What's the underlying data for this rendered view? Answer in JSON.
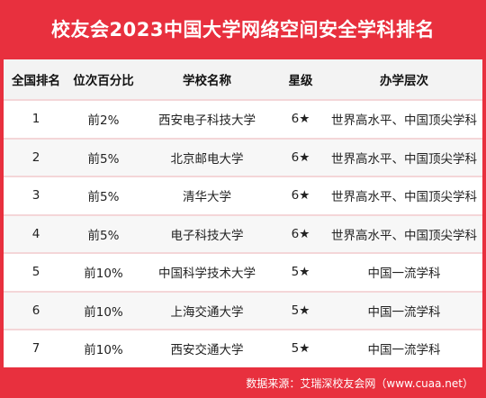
{
  "title": "校友会2023中国大学网络空间安全学科排名",
  "headers": {
    "rank": "全国排名",
    "percentile": "位次百分比",
    "school": "学校名称",
    "star": "星级",
    "level": "办学层次"
  },
  "rows": [
    {
      "rank": "1",
      "percentile": "前2%",
      "school": "西安电子科技大学",
      "star": "6★",
      "level": "世界高水平、中国顶尖学科"
    },
    {
      "rank": "2",
      "percentile": "前5%",
      "school": "北京邮电大学",
      "star": "6★",
      "level": "世界高水平、中国顶尖学科"
    },
    {
      "rank": "3",
      "percentile": "前5%",
      "school": "清华大学",
      "star": "6★",
      "level": "世界高水平、中国顶尖学科"
    },
    {
      "rank": "4",
      "percentile": "前5%",
      "school": "电子科技大学",
      "star": "6★",
      "level": "世界高水平、中国顶尖学科"
    },
    {
      "rank": "5",
      "percentile": "前10%",
      "school": "中国科学技术大学",
      "star": "5★",
      "level": "中国一流学科"
    },
    {
      "rank": "6",
      "percentile": "前10%",
      "school": "上海交通大学",
      "star": "5★",
      "level": "中国一流学科"
    },
    {
      "rank": "7",
      "percentile": "前10%",
      "school": "西安交通大学",
      "star": "5★",
      "level": "中国一流学科"
    }
  ],
  "footer": "数据来源：艾瑞深校友会网（www.cuaa.net）",
  "colors": {
    "accent": "#e8303e",
    "header_bg": "#f3f3f3",
    "row_divider": "#f4d6d8"
  }
}
